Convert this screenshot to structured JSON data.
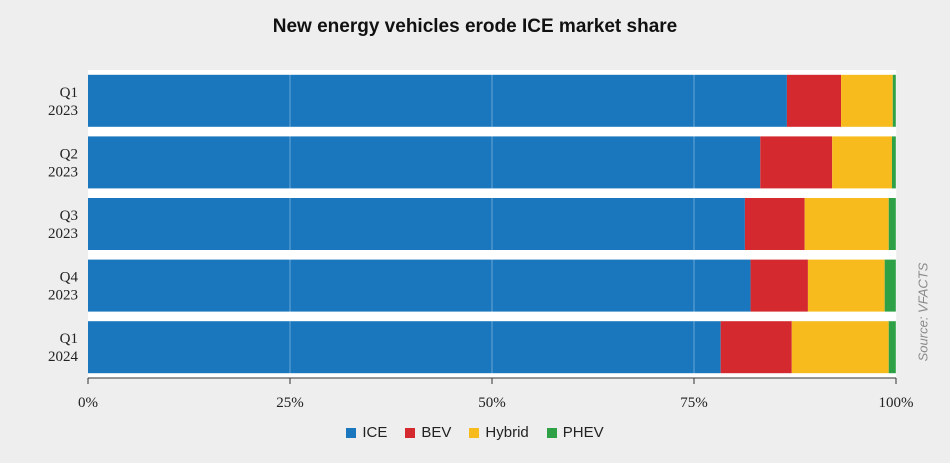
{
  "source_note": "Source: VFACTS",
  "chart_data": {
    "type": "bar",
    "orientation": "horizontal",
    "stacked": true,
    "normalized_percent": true,
    "title": "New energy vehicles erode ICE market share",
    "categories": [
      [
        "Q1",
        "2023"
      ],
      [
        "Q2",
        "2023"
      ],
      [
        "Q3",
        "2023"
      ],
      [
        "Q4",
        "2023"
      ],
      [
        "Q1",
        "2024"
      ]
    ],
    "series": [
      {
        "name": "ICE",
        "color": "#1a77bd",
        "values": [
          86.5,
          83.2,
          81.3,
          82.0,
          78.3
        ]
      },
      {
        "name": "BEV",
        "color": "#d42a2f",
        "values": [
          6.7,
          8.9,
          7.4,
          7.1,
          8.8
        ]
      },
      {
        "name": "Hybrid",
        "color": "#f7bb1d",
        "values": [
          6.4,
          7.4,
          10.4,
          9.5,
          12.0
        ]
      },
      {
        "name": "PHEV",
        "color": "#2ea147",
        "values": [
          0.4,
          0.5,
          0.9,
          1.4,
          0.9
        ]
      }
    ],
    "xlim": [
      0,
      100
    ],
    "x_ticks": [
      "0%",
      "25%",
      "50%",
      "75%",
      "100%"
    ],
    "x_tick_values": [
      0,
      25,
      50,
      75,
      100
    ],
    "grid": true,
    "legend_position": "bottom"
  }
}
